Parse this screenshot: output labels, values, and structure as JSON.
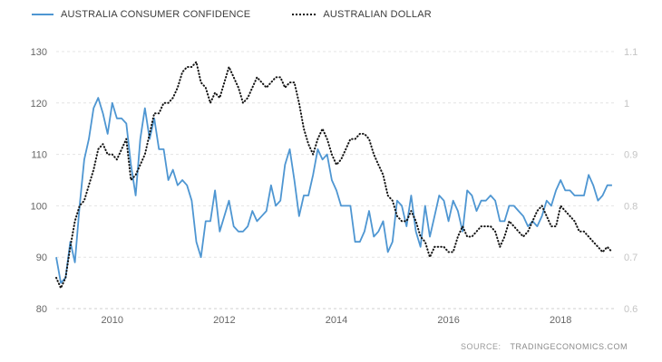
{
  "page": {
    "background": "#ffffff"
  },
  "legend": [
    {
      "label": "AUSTRALIA CONSUMER CONFIDENCE",
      "style": "solid",
      "color": "#4e96d2"
    },
    {
      "label": "AUSTRALIAN DOLLAR",
      "style": "dotted",
      "color": "#141414"
    }
  ],
  "source": {
    "prefix": "SOURCE:",
    "name": "TRADINGECONOMICS.COM"
  },
  "chart_data": {
    "type": "line",
    "x_range": [
      2009,
      2019
    ],
    "x_ticks": [
      2010,
      2012,
      2014,
      2016,
      2018
    ],
    "points_per_year": 12,
    "grid": "dashed-horizontal",
    "legend_position": "top-left",
    "left_axis": {
      "ticks": [
        80,
        90,
        100,
        110,
        120,
        130
      ],
      "range": [
        80,
        130
      ],
      "color": "#666666"
    },
    "right_axis": {
      "ticks": [
        0.6,
        0.7,
        0.8,
        0.9,
        1,
        1.1
      ],
      "range": [
        0.6,
        1.1
      ],
      "color": "#c4c4c4"
    },
    "series": [
      {
        "name": "Australia Consumer Confidence",
        "key": "consumer-confidence",
        "axis": "left",
        "color": "#4e96d2",
        "style": "solid",
        "start_year": 2009,
        "interval": "monthly",
        "values": [
          90,
          85,
          86,
          93,
          89,
          100,
          109,
          113,
          119,
          121,
          118,
          114,
          120,
          117,
          117,
          116,
          108,
          102,
          113,
          119,
          113,
          117,
          111,
          111,
          105,
          107,
          104,
          105,
          104,
          101,
          93,
          90,
          97,
          97,
          103,
          95,
          98,
          101,
          96,
          95,
          95,
          96,
          99,
          97,
          98,
          99,
          104,
          100,
          101,
          108,
          111,
          105,
          98,
          102,
          102,
          106,
          111,
          109,
          110,
          105,
          103,
          100,
          100,
          100,
          93,
          93,
          95,
          99,
          94,
          95,
          97,
          91,
          93,
          101,
          100,
          96,
          102,
          95,
          92,
          100,
          94,
          98,
          102,
          101,
          97,
          101,
          99,
          95,
          103,
          102,
          99,
          101,
          101,
          102,
          101,
          97,
          97,
          100,
          100,
          99,
          98,
          96,
          97,
          96,
          98,
          101,
          100,
          103,
          105,
          103,
          103,
          102,
          102,
          102,
          106,
          104,
          101,
          102,
          104,
          104
        ]
      },
      {
        "name": "Australian Dollar",
        "key": "australian-dollar",
        "axis": "right",
        "color": "#141414",
        "style": "dotted",
        "start_year": 2009,
        "interval": "monthly",
        "values": [
          0.66,
          0.64,
          0.66,
          0.72,
          0.77,
          0.8,
          0.81,
          0.84,
          0.87,
          0.91,
          0.92,
          0.9,
          0.9,
          0.89,
          0.91,
          0.93,
          0.85,
          0.86,
          0.88,
          0.9,
          0.94,
          0.98,
          0.98,
          1.0,
          1.0,
          1.01,
          1.03,
          1.06,
          1.07,
          1.07,
          1.08,
          1.04,
          1.03,
          1.0,
          1.02,
          1.01,
          1.04,
          1.07,
          1.05,
          1.03,
          1.0,
          1.01,
          1.03,
          1.05,
          1.04,
          1.03,
          1.04,
          1.05,
          1.05,
          1.03,
          1.04,
          1.04,
          1.0,
          0.95,
          0.92,
          0.9,
          0.93,
          0.95,
          0.93,
          0.9,
          0.88,
          0.89,
          0.91,
          0.93,
          0.93,
          0.94,
          0.94,
          0.93,
          0.9,
          0.88,
          0.86,
          0.82,
          0.81,
          0.78,
          0.77,
          0.77,
          0.79,
          0.77,
          0.74,
          0.73,
          0.7,
          0.72,
          0.72,
          0.72,
          0.71,
          0.71,
          0.74,
          0.76,
          0.74,
          0.74,
          0.75,
          0.76,
          0.76,
          0.76,
          0.75,
          0.72,
          0.74,
          0.77,
          0.76,
          0.75,
          0.74,
          0.75,
          0.77,
          0.79,
          0.8,
          0.78,
          0.76,
          0.76,
          0.8,
          0.79,
          0.78,
          0.77,
          0.75,
          0.75,
          0.74,
          0.73,
          0.72,
          0.71,
          0.72,
          0.71
        ]
      }
    ]
  }
}
